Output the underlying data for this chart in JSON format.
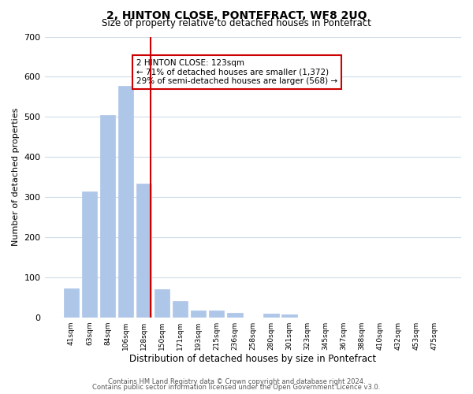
{
  "title": "2, HINTON CLOSE, PONTEFRACT, WF8 2UQ",
  "subtitle": "Size of property relative to detached houses in Pontefract",
  "xlabel": "Distribution of detached houses by size in Pontefract",
  "ylabel": "Number of detached properties",
  "bar_labels": [
    "41sqm",
    "63sqm",
    "84sqm",
    "106sqm",
    "128sqm",
    "150sqm",
    "171sqm",
    "193sqm",
    "215sqm",
    "236sqm",
    "258sqm",
    "280sqm",
    "301sqm",
    "323sqm",
    "345sqm",
    "367sqm",
    "388sqm",
    "410sqm",
    "432sqm",
    "453sqm",
    "475sqm"
  ],
  "bar_values": [
    73,
    313,
    505,
    577,
    333,
    70,
    40,
    18,
    17,
    12,
    0,
    10,
    7,
    0,
    0,
    0,
    0,
    0,
    0,
    0,
    0
  ],
  "bar_color": "#aec6e8",
  "bar_edge_color": "#aec6e8",
  "ylim": [
    0,
    700
  ],
  "yticks": [
    0,
    100,
    200,
    300,
    400,
    500,
    600,
    700
  ],
  "property_line_x": 4,
  "property_line_color": "#cc0000",
  "annotation_title": "2 HINTON CLOSE: 123sqm",
  "annotation_line1": "← 71% of detached houses are smaller (1,372)",
  "annotation_line2": "29% of semi-detached houses are larger (568) →",
  "annotation_box_color": "#ffffff",
  "annotation_box_edge_color": "#cc0000",
  "footer_line1": "Contains HM Land Registry data © Crown copyright and database right 2024.",
  "footer_line2": "Contains public sector information licensed under the Open Government Licence v3.0.",
  "background_color": "#ffffff",
  "grid_color": "#d0dce8"
}
